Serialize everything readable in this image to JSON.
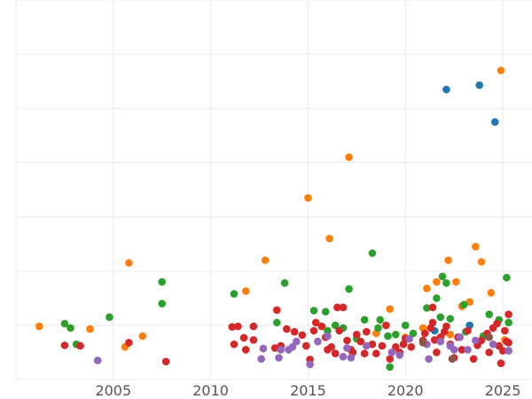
{
  "chart_data": {
    "type": "scatter",
    "title": "",
    "xlabel": "",
    "ylabel": "",
    "xlim": [
      2000,
      2026.5
    ],
    "ylim": [
      0,
      7
    ],
    "xticks": [
      2005,
      2010,
      2015,
      2020,
      2025
    ],
    "xtick_labels": [
      "2005",
      "2010",
      "2015",
      "2020",
      "2025"
    ],
    "grid": true,
    "legend": "none",
    "series": [
      {
        "color": "#1f77b4",
        "points": [
          [
            2022.1,
            5.35
          ],
          [
            2023.8,
            5.43
          ],
          [
            2024.6,
            4.75
          ],
          [
            2023.3,
            1.0
          ],
          [
            2021.5,
            0.9
          ]
        ]
      },
      {
        "color": "#ff7f0e",
        "points": [
          [
            2001.2,
            0.98
          ],
          [
            2003.8,
            0.93
          ],
          [
            2005.6,
            0.6
          ],
          [
            2005.8,
            2.15
          ],
          [
            2006.5,
            0.8
          ],
          [
            2011.8,
            1.63
          ],
          [
            2012.8,
            2.2
          ],
          [
            2015.0,
            3.35
          ],
          [
            2016.1,
            2.6
          ],
          [
            2017.1,
            4.1
          ],
          [
            2019.2,
            1.3
          ],
          [
            2020.9,
            0.95
          ],
          [
            2021.1,
            1.68
          ],
          [
            2021.6,
            1.8
          ],
          [
            2022.2,
            2.2
          ],
          [
            2022.6,
            1.8
          ],
          [
            2022.9,
            1.35
          ],
          [
            2023.3,
            1.43
          ],
          [
            2023.6,
            2.45
          ],
          [
            2023.9,
            2.17
          ],
          [
            2024.4,
            1.6
          ],
          [
            2024.9,
            5.7
          ],
          [
            2025.1,
            0.73
          ],
          [
            2018.5,
            0.85
          ],
          [
            2020.0,
            0.78
          ],
          [
            2022.3,
            0.83
          ]
        ]
      },
      {
        "color": "#2ca02c",
        "points": [
          [
            2002.5,
            1.03
          ],
          [
            2002.8,
            0.95
          ],
          [
            2003.1,
            0.65
          ],
          [
            2004.8,
            1.15
          ],
          [
            2007.5,
            1.8
          ],
          [
            2007.5,
            1.4
          ],
          [
            2011.2,
            1.58
          ],
          [
            2013.4,
            1.05
          ],
          [
            2013.8,
            1.78
          ],
          [
            2015.3,
            1.27
          ],
          [
            2015.9,
            1.25
          ],
          [
            2016.4,
            1.0
          ],
          [
            2016.8,
            0.95
          ],
          [
            2017.1,
            1.67
          ],
          [
            2017.9,
            1.1
          ],
          [
            2018.3,
            2.33
          ],
          [
            2018.6,
            0.95
          ],
          [
            2019.2,
            0.23
          ],
          [
            2019.5,
            0.83
          ],
          [
            2020.0,
            1.0
          ],
          [
            2021.1,
            1.32
          ],
          [
            2021.6,
            1.5
          ],
          [
            2021.9,
            1.9
          ],
          [
            2022.1,
            1.78
          ],
          [
            2022.3,
            1.12
          ],
          [
            2023.0,
            1.38
          ],
          [
            2024.3,
            1.2
          ],
          [
            2024.8,
            1.1
          ],
          [
            2025.2,
            1.88
          ],
          [
            2025.3,
            1.05
          ],
          [
            2018.7,
            1.1
          ],
          [
            2016.0,
            0.9
          ],
          [
            2019.1,
            0.8
          ],
          [
            2021.8,
            1.15
          ],
          [
            2020.4,
            0.85
          ],
          [
            2024.0,
            0.8
          ],
          [
            2017.5,
            0.75
          ],
          [
            2023.1,
            0.88
          ]
        ]
      },
      {
        "color": "#d62728",
        "points": [
          [
            2002.5,
            0.63
          ],
          [
            2003.3,
            0.62
          ],
          [
            2005.8,
            0.68
          ],
          [
            2007.7,
            0.33
          ],
          [
            2011.1,
            0.97
          ],
          [
            2011.2,
            0.65
          ],
          [
            2011.4,
            0.98
          ],
          [
            2011.7,
            0.77
          ],
          [
            2011.8,
            0.55
          ],
          [
            2012.2,
            0.73
          ],
          [
            2012.2,
            0.98
          ],
          [
            2013.6,
            0.62
          ],
          [
            2013.9,
            0.93
          ],
          [
            2013.4,
            1.28
          ],
          [
            2014.3,
            0.88
          ],
          [
            2014.7,
            0.82
          ],
          [
            2014.9,
            0.62
          ],
          [
            2015.1,
            0.37
          ],
          [
            2015.3,
            0.9
          ],
          [
            2015.4,
            1.05
          ],
          [
            2015.7,
            0.98
          ],
          [
            2015.9,
            0.78
          ],
          [
            2016.0,
            0.55
          ],
          [
            2016.2,
            0.6
          ],
          [
            2016.4,
            0.48
          ],
          [
            2016.6,
            0.9
          ],
          [
            2016.8,
            1.33
          ],
          [
            2017.0,
            0.72
          ],
          [
            2017.3,
            0.5
          ],
          [
            2017.5,
            0.83
          ],
          [
            2017.7,
            0.7
          ],
          [
            2017.9,
            0.48
          ],
          [
            2018.0,
            0.88
          ],
          [
            2018.3,
            0.65
          ],
          [
            2018.5,
            0.48
          ],
          [
            2018.8,
            0.62
          ],
          [
            2019.0,
            1.0
          ],
          [
            2019.2,
            0.38
          ],
          [
            2019.5,
            0.6
          ],
          [
            2019.7,
            0.5
          ],
          [
            2020.0,
            0.75
          ],
          [
            2020.3,
            0.6
          ],
          [
            2020.9,
            0.72
          ],
          [
            2021.0,
            0.85
          ],
          [
            2021.3,
            0.95
          ],
          [
            2021.4,
            1.05
          ],
          [
            2021.5,
            0.73
          ],
          [
            2021.6,
            0.5
          ],
          [
            2021.8,
            0.78
          ],
          [
            2022.0,
            0.88
          ],
          [
            2022.1,
            0.98
          ],
          [
            2022.3,
            0.65
          ],
          [
            2022.5,
            0.4
          ],
          [
            2022.7,
            0.78
          ],
          [
            2022.9,
            0.55
          ],
          [
            2023.2,
            0.9
          ],
          [
            2023.5,
            0.38
          ],
          [
            2023.9,
            0.72
          ],
          [
            2024.2,
            0.85
          ],
          [
            2024.3,
            0.5
          ],
          [
            2024.5,
            0.95
          ],
          [
            2024.7,
            1.03
          ],
          [
            2024.8,
            0.62
          ],
          [
            2024.9,
            0.3
          ],
          [
            2025.0,
            0.53
          ],
          [
            2025.1,
            0.9
          ],
          [
            2025.2,
            0.7
          ],
          [
            2025.3,
            1.2
          ],
          [
            2025.3,
            0.68
          ],
          [
            2021.4,
            1.33
          ],
          [
            2016.5,
            1.33
          ],
          [
            2013.3,
            0.58
          ],
          [
            2019.9,
            0.65
          ],
          [
            2023.7,
            0.63
          ],
          [
            2017.2,
            0.55
          ]
        ]
      },
      {
        "color": "#9467bd",
        "points": [
          [
            2004.2,
            0.35
          ],
          [
            2012.6,
            0.38
          ],
          [
            2012.7,
            0.57
          ],
          [
            2013.5,
            0.4
          ],
          [
            2013.6,
            0.55
          ],
          [
            2014.0,
            0.55
          ],
          [
            2014.4,
            0.7
          ],
          [
            2015.1,
            0.28
          ],
          [
            2015.5,
            0.7
          ],
          [
            2016.0,
            0.8
          ],
          [
            2016.8,
            0.42
          ],
          [
            2017.0,
            0.58
          ],
          [
            2017.2,
            0.4
          ],
          [
            2018.0,
            0.62
          ],
          [
            2019.3,
            0.5
          ],
          [
            2019.7,
            0.45
          ],
          [
            2020.2,
            0.75
          ],
          [
            2021.2,
            0.38
          ],
          [
            2021.8,
            0.7
          ],
          [
            2022.3,
            0.62
          ],
          [
            2022.5,
            0.55
          ],
          [
            2022.8,
            0.78
          ],
          [
            2023.2,
            0.55
          ],
          [
            2023.6,
            0.72
          ],
          [
            2024.5,
            0.65
          ],
          [
            2025.3,
            0.53
          ],
          [
            2021.1,
            0.65
          ],
          [
            2014.2,
            0.6
          ]
        ]
      },
      {
        "color": "#8c564b",
        "points": [
          [
            2020.9,
            0.68
          ],
          [
            2022.4,
            0.38
          ],
          [
            2024.3,
            0.78
          ]
        ]
      }
    ]
  }
}
